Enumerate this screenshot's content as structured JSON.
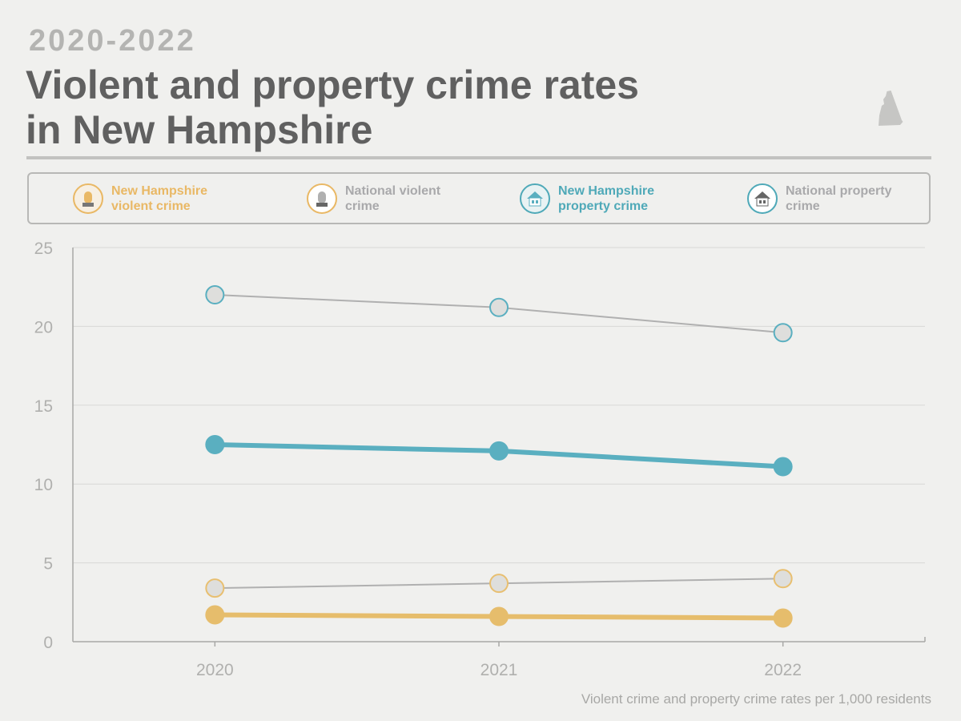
{
  "header": {
    "subtitle": "2020-2022",
    "title": "Violent and property crime rates in New Hampshire"
  },
  "legend": [
    {
      "label": "New Hampshire violent crime",
      "icon": "siren-icon",
      "color": "#e9b865"
    },
    {
      "label": "National violent crime",
      "icon": "siren-icon",
      "color": "#a9a9ab"
    },
    {
      "label": "New Hampshire property crime",
      "icon": "house-icon",
      "color": "#4fa9b8"
    },
    {
      "label": "National property crime",
      "icon": "house-icon",
      "color": "#a9a9ab"
    }
  ],
  "footnote": "Violent crime and property crime rates per 1,000 residents",
  "chart_data": {
    "type": "line",
    "title": "Violent and property crime rates in New Hampshire",
    "x": [
      2020,
      2021,
      2022
    ],
    "xlim": [
      2019.5,
      2022.5
    ],
    "ylim": [
      0,
      25
    ],
    "yticks": [
      0,
      5,
      10,
      15,
      20,
      25
    ],
    "grid": true,
    "ylabel": "Violent crime and property crime rates per 1,000 residents",
    "series": [
      {
        "name": "National property crime",
        "values": [
          22.0,
          21.2,
          19.6
        ],
        "line": "#b0b0b0",
        "fill": "#dededc",
        "stroke": "#5aafc0",
        "width": 2
      },
      {
        "name": "New Hampshire property crime",
        "values": [
          12.5,
          12.1,
          11.1
        ],
        "line": "#5aafc0",
        "fill": "#5aafc0",
        "stroke": "#5aafc0",
        "width": 6
      },
      {
        "name": "National violent crime",
        "values": [
          3.4,
          3.7,
          4.0
        ],
        "line": "#b0b0b0",
        "fill": "#dededc",
        "stroke": "#e8bf70",
        "width": 2
      },
      {
        "name": "New Hampshire violent crime",
        "values": [
          1.7,
          1.6,
          1.5
        ],
        "line": "#e6bd6c",
        "fill": "#e6bd6c",
        "stroke": "#e6bd6c",
        "width": 6
      }
    ]
  }
}
